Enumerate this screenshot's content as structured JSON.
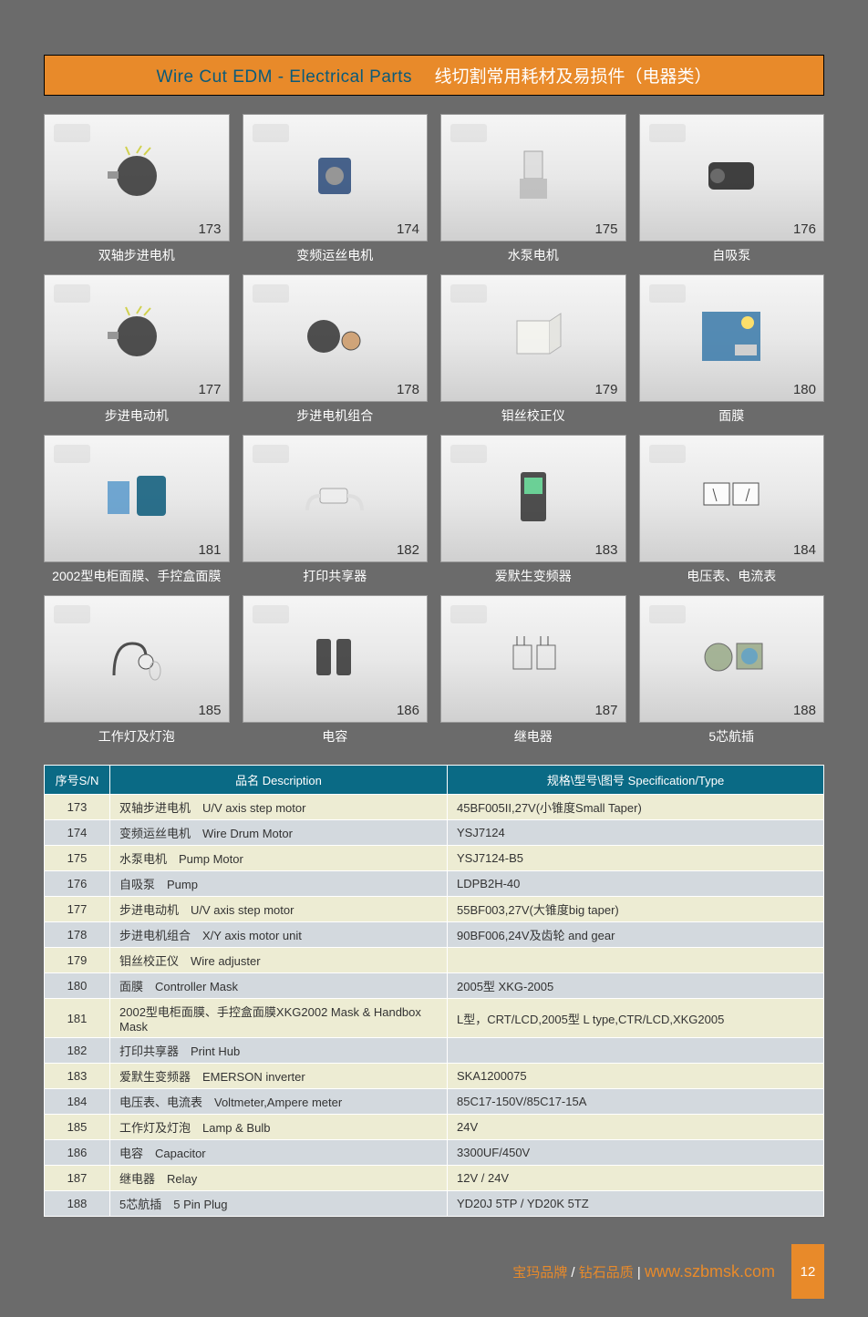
{
  "title": {
    "en": "Wire Cut EDM - Electrical Parts",
    "cn": "线切割常用耗材及易损件（电器类）"
  },
  "products": [
    {
      "num": "173",
      "caption": "双轴步进电机"
    },
    {
      "num": "174",
      "caption": "变频运丝电机"
    },
    {
      "num": "175",
      "caption": "水泵电机"
    },
    {
      "num": "176",
      "caption": "自吸泵"
    },
    {
      "num": "177",
      "caption": "步进电动机"
    },
    {
      "num": "178",
      "caption": "步进电机组合"
    },
    {
      "num": "179",
      "caption": "钼丝校正仪"
    },
    {
      "num": "180",
      "caption": "面膜"
    },
    {
      "num": "181",
      "caption": "2002型电柜面膜、手控盒面膜"
    },
    {
      "num": "182",
      "caption": "打印共享器"
    },
    {
      "num": "183",
      "caption": "爱默生变频器"
    },
    {
      "num": "184",
      "caption": "电压表、电流表"
    },
    {
      "num": "185",
      "caption": "工作灯及灯泡"
    },
    {
      "num": "186",
      "caption": "电容"
    },
    {
      "num": "187",
      "caption": "继电器"
    },
    {
      "num": "188",
      "caption": "5芯航插"
    }
  ],
  "table": {
    "headers": {
      "sn": "序号S/N",
      "desc": "品名 Description",
      "spec": "规格\\型号\\图号 Specification/Type"
    },
    "row_colors": {
      "even": "#edecd3",
      "odd": "#d3d9de"
    },
    "rows": [
      {
        "sn": "173",
        "desc": "双轴步进电机　U/V axis step motor",
        "spec": "45BF005II,27V(小锥度Small Taper)"
      },
      {
        "sn": "174",
        "desc": "变频运丝电机　Wire Drum Motor",
        "spec": "YSJ7124"
      },
      {
        "sn": "175",
        "desc": "水泵电机　Pump Motor",
        "spec": "YSJ7124-B5"
      },
      {
        "sn": "176",
        "desc": "自吸泵　Pump",
        "spec": "LDPB2H-40"
      },
      {
        "sn": "177",
        "desc": "步进电动机　U/V axis step motor",
        "spec": "55BF003,27V(大锥度big taper)"
      },
      {
        "sn": "178",
        "desc": "步进电机组合　X/Y axis motor unit",
        "spec": "90BF006,24V及齿轮 and gear"
      },
      {
        "sn": "179",
        "desc": "钼丝校正仪　Wire adjuster",
        "spec": ""
      },
      {
        "sn": "180",
        "desc": "面膜　Controller Mask",
        "spec": "2005型  XKG-2005"
      },
      {
        "sn": "181",
        "desc": "2002型电柜面膜、手控盒面膜XKG2002 Mask & Handbox Mask",
        "spec": "L型，CRT/LCD,2005型 L type,CTR/LCD,XKG2005"
      },
      {
        "sn": "182",
        "desc": "打印共享器　Print Hub",
        "spec": ""
      },
      {
        "sn": "183",
        "desc": "爱默生变频器　EMERSON inverter",
        "spec": "SKA1200075"
      },
      {
        "sn": "184",
        "desc": "电压表、电流表　Voltmeter,Ampere meter",
        "spec": "85C17-150V/85C17-15A"
      },
      {
        "sn": "185",
        "desc": "工作灯及灯泡　Lamp & Bulb",
        "spec": "24V"
      },
      {
        "sn": "186",
        "desc": "电容　Capacitor",
        "spec": "3300UF/450V"
      },
      {
        "sn": "187",
        "desc": "继电器　Relay",
        "spec": "12V / 24V"
      },
      {
        "sn": "188",
        "desc": "5芯航插　5 Pin Plug",
        "spec": "YD20J 5TP / YD20K 5TZ"
      }
    ]
  },
  "footer": {
    "brand": "宝玛品牌",
    "slash": " / ",
    "qual": "钻石品质",
    "bar": " | ",
    "url": "www.szbmsk.com",
    "page": "12"
  },
  "icons": [
    "motor",
    "motor-sq",
    "pump-v",
    "pump-h",
    "motor",
    "motor-combo",
    "cube",
    "panel-blue",
    "panels",
    "hub",
    "inverter",
    "meters",
    "lamp",
    "caps",
    "relay",
    "plug"
  ]
}
